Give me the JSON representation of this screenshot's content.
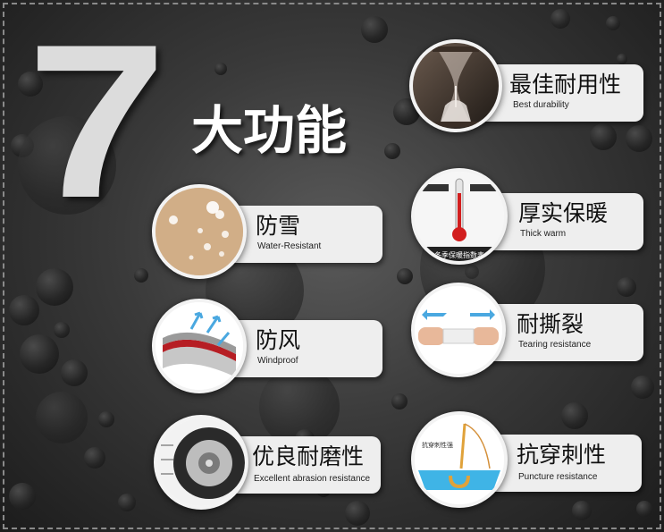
{
  "headline": {
    "number": "7",
    "title": "大功能"
  },
  "features": [
    {
      "id": "durability",
      "title": "最佳耐用性",
      "subtitle": "Best durability",
      "icon": "hourglass-icon"
    },
    {
      "id": "water",
      "title": "防雪",
      "subtitle": "Water-Resistant",
      "icon": "water-drops-icon"
    },
    {
      "id": "warm",
      "title": "厚实保暖",
      "subtitle": "Thick warm",
      "icon": "thermometer-icon",
      "icon_text": {
        "banner": "冬季保暖指数表"
      }
    },
    {
      "id": "wind",
      "title": "防风",
      "subtitle": "Windproof",
      "icon": "fabric-layers-icon"
    },
    {
      "id": "tear",
      "title": "耐撕裂",
      "subtitle": "Tearing resistance",
      "icon": "stretch-hands-icon"
    },
    {
      "id": "abrasion",
      "title": "优良耐磨性",
      "subtitle": "Excellent abrasion resistance",
      "icon": "tire-icon"
    },
    {
      "id": "puncture",
      "title": "抗穿刺性",
      "subtitle": "Puncture resistance",
      "icon": "needle-icon",
      "icon_text": {
        "label": "抗穿刺性强"
      }
    }
  ],
  "colors": {
    "background": "#333333",
    "pill": "#eeeeee",
    "seven": "#dcdcdc",
    "arrow": "#4aa8e0"
  }
}
